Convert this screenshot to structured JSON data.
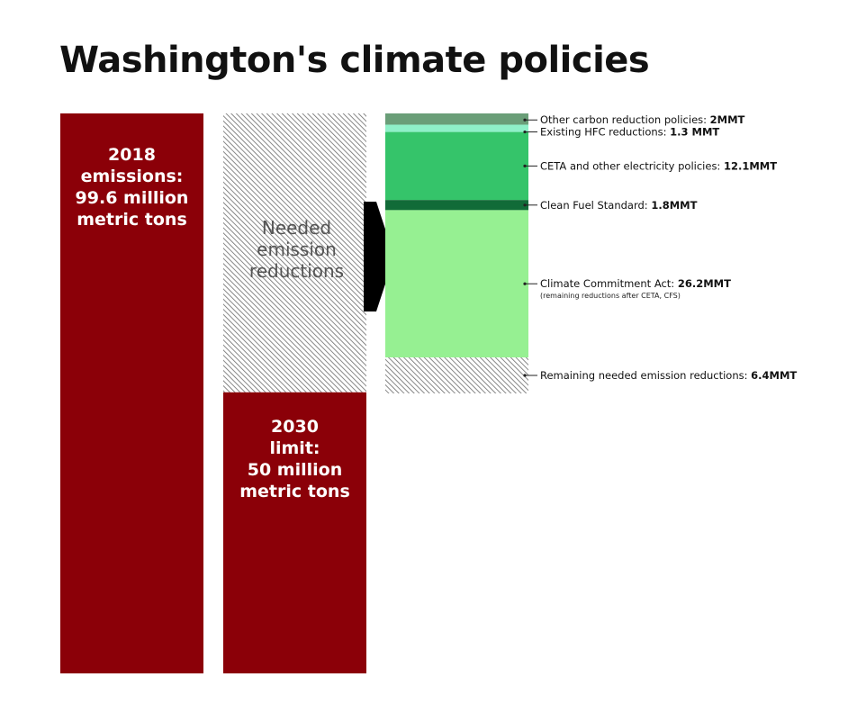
{
  "chart_data": {
    "type": "bar",
    "title": "Washington's climate policies",
    "colors": {
      "emissions_bar": "#8b0008",
      "hatch": "#6a6a6a",
      "arrow": "#000000",
      "leader": "#222222"
    },
    "bars": [
      {
        "name": "2018 emissions",
        "value": 99.6,
        "label_lines": [
          "2018",
          "emissions:",
          "99.6 million",
          "metric tons"
        ]
      },
      {
        "name": "2030 limit",
        "value": 50,
        "label_lines": [
          "2030",
          "limit:",
          "50 million",
          "metric tons"
        ]
      }
    ],
    "needed_reductions": {
      "value": 49.6,
      "label_lines": [
        "Needed",
        "emission",
        "reductions"
      ]
    },
    "segments": [
      {
        "label": "Other carbon reduction policies: ",
        "value_text": "2MMT",
        "value": 2,
        "color": "#6a9e78",
        "note": ""
      },
      {
        "label": "Existing HFC reductions: ",
        "value_text": "1.3 MMT",
        "value": 1.3,
        "color": "#8ff0c8",
        "note": ""
      },
      {
        "label": "CETA and other electricity policies: ",
        "value_text": "12.1MMT",
        "value": 12.1,
        "color": "#35c46a",
        "note": ""
      },
      {
        "label": "Clean Fuel Standard: ",
        "value_text": "1.8MMT",
        "value": 1.8,
        "color": "#116b38",
        "note": ""
      },
      {
        "label": "Climate Commitment Act: ",
        "value_text": "26.2MMT",
        "value": 26.2,
        "color": "#96f092",
        "note": "(remaining reductions after CETA, CFS)"
      },
      {
        "label": "Remaining needed emission reductions: ",
        "value_text": "6.4MMT",
        "value": 6.4,
        "color": "hatch",
        "note": ""
      }
    ]
  }
}
